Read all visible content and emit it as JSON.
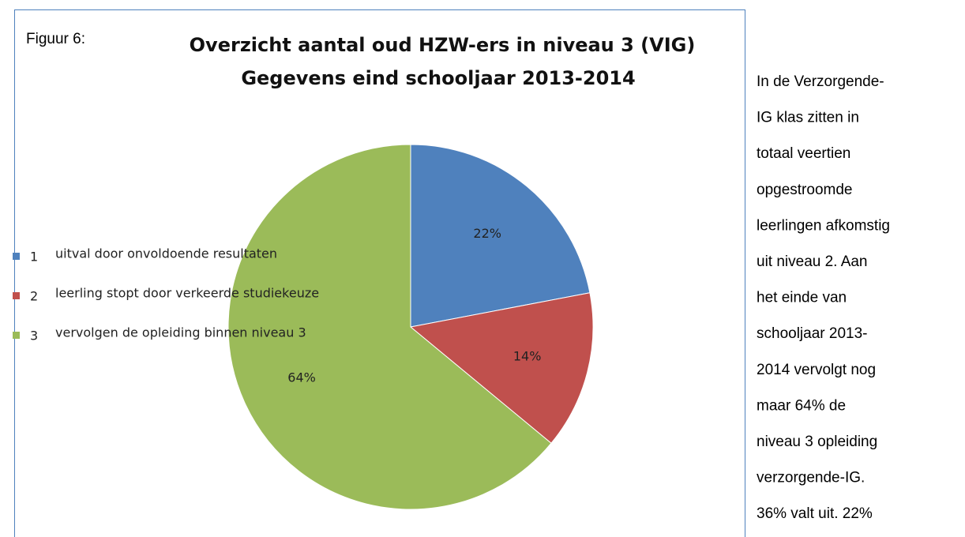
{
  "figure_label": "Figuur 6:",
  "chart_data": {
    "type": "pie",
    "title": [
      "Overzicht aantal oud HZW-ers in niveau 3 (VIG)",
      "Gegevens eind schooljaar 2013-2014"
    ],
    "legend_numbers": [
      "1",
      "2",
      "3"
    ],
    "categories": [
      "uitval door onvoldoende resultaten",
      "leerling stopt door verkeerde  studiekeuze",
      "vervolgen de opleiding binnen niveau 3"
    ],
    "values": [
      22,
      14,
      64
    ],
    "value_labels": [
      "22%",
      "14%",
      "64%"
    ],
    "colors": [
      "#4f81bd",
      "#c0504d",
      "#9bbb59"
    ],
    "legend": "left"
  },
  "body_text": [
    "In de Verzorgende-",
    "IG klas zitten in",
    "totaal veertien",
    "opgestroomde",
    "leerlingen afkomstig",
    "uit niveau 2. Aan",
    "het einde van",
    "schooljaar 2013-",
    "2014 vervolgt nog",
    "maar 64% de",
    "niveau 3 opleiding",
    "verzorgende-IG.",
    "36% valt uit. 22%"
  ]
}
